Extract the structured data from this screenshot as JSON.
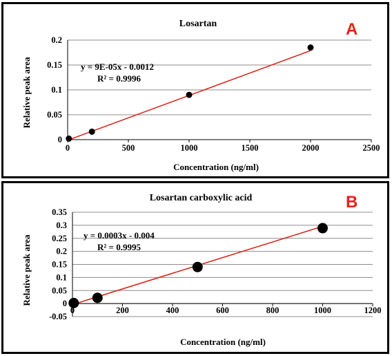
{
  "chart_data": [
    {
      "type": "scatter",
      "panel_label": "A",
      "title": "Losartan",
      "xlabel": "Concentration (ng/ml)",
      "ylabel": "Relative peak area",
      "xlim": [
        0,
        2500
      ],
      "ylim": [
        0,
        0.2
      ],
      "xticks": [
        "0",
        "500",
        "1000",
        "1500",
        "2000",
        "2500"
      ],
      "yticks": [
        "0",
        "0.05",
        "0.1",
        "0.15",
        "0.2"
      ],
      "grid": "horizontal",
      "points": [
        {
          "x": 10,
          "y": 0.002
        },
        {
          "x": 200,
          "y": 0.016
        },
        {
          "x": 1000,
          "y": 0.09
        },
        {
          "x": 2000,
          "y": 0.185
        }
      ],
      "trendline": {
        "slope": 9e-05,
        "intercept": -0.0012,
        "x_range": [
          0,
          2000
        ],
        "color": "#d9261c"
      },
      "equation": "y = 9E-05x - 0.0012",
      "r_squared": "R² = 0.9996",
      "marker_color": "#000000"
    },
    {
      "type": "scatter",
      "panel_label": "B",
      "title": "Losartan carboxylic acid",
      "xlabel": "Concentration (ng/ml)",
      "ylabel": "Relative peak area",
      "xlim": [
        0,
        1200
      ],
      "ylim": [
        -0.05,
        0.35
      ],
      "xticks": [
        "0",
        "200",
        "400",
        "600",
        "800",
        "1000",
        "1200"
      ],
      "yticks": [
        "-0.05",
        "0",
        "0.05",
        "0.1",
        "0.15",
        "0.2",
        "0.25",
        "0.3",
        "0.35"
      ],
      "grid": "horizontal",
      "points": [
        {
          "x": 5,
          "y": 0.002
        },
        {
          "x": 100,
          "y": 0.022
        },
        {
          "x": 500,
          "y": 0.14
        },
        {
          "x": 1000,
          "y": 0.289
        }
      ],
      "trendline": {
        "slope": 0.0003,
        "intercept": -0.004,
        "x_range": [
          0,
          1000
        ],
        "color": "#d9261c"
      },
      "equation": "y = 0.0003x - 0.004",
      "r_squared": "R² = 0.9995",
      "marker_color": "#000000"
    }
  ]
}
